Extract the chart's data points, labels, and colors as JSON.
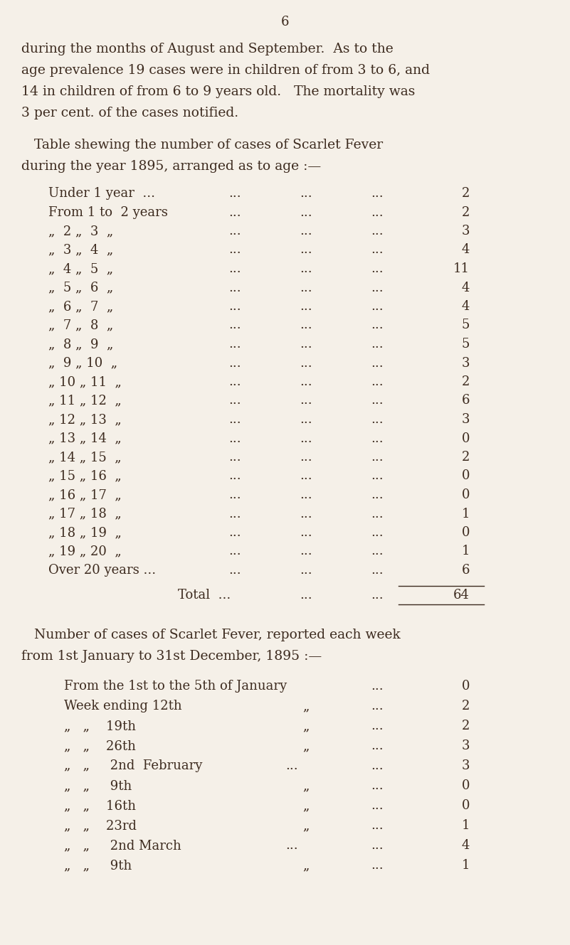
{
  "bg_color": "#f5f0e8",
  "text_color": "#3d2b1f",
  "page_number": "6",
  "intro_text": [
    "during the months of August and September.  As to the",
    "age prevalence 19 cases were in children of from 3 to 6, and",
    "14 in children of from 6 to 9 years old.   The mortality was",
    "3 per cent. of the cases notified."
  ],
  "table_heading": [
    "   Table shewing the number of cases of Scarlet Fever",
    "during the year 1895, arranged as to age :—"
  ],
  "age_rows": [
    {
      "label": "Under 1 year  ...",
      "dots": "...",
      "dots2": "...",
      "dots3": "...",
      "value": "2"
    },
    {
      "label": "From 1 to  2 years",
      "dots": "...",
      "dots2": "...",
      "dots3": "...",
      "value": "2"
    },
    {
      "label": "„  2 „  3  „",
      "dots": "...",
      "dots2": "...",
      "dots3": "...",
      "value": "3"
    },
    {
      "label": "„  3 „  4  „",
      "dots": "...",
      "dots2": "...",
      "dots3": "...",
      "value": "4"
    },
    {
      "label": "„  4 „  5  „",
      "dots": "...",
      "dots2": "...",
      "dots3": "...",
      "value": "11"
    },
    {
      "label": "„  5 „  6  „",
      "dots": "...",
      "dots2": "...",
      "dots3": "...",
      "value": "4"
    },
    {
      "label": "„  6 „  7  „",
      "dots": "...",
      "dots2": "...",
      "dots3": "...",
      "value": "4"
    },
    {
      "label": "„  7 „  8  „",
      "dots": "...",
      "dots2": "...",
      "dots3": "...",
      "value": "5"
    },
    {
      "label": "„  8 „  9  „",
      "dots": "...",
      "dots2": "...",
      "dots3": "...",
      "value": "5"
    },
    {
      "label": "„  9 „ 10  „",
      "dots": "...",
      "dots2": "...",
      "dots3": "...",
      "value": "3"
    },
    {
      "label": "„ 10 „ 11  „",
      "dots": "...",
      "dots2": "...",
      "dots3": "...",
      "value": "2"
    },
    {
      "label": "„ 11 „ 12  „",
      "dots": "...",
      "dots2": "...",
      "dots3": "...",
      "value": "6"
    },
    {
      "label": "„ 12 „ 13  „",
      "dots": "...",
      "dots2": "...",
      "dots3": "...",
      "value": "3"
    },
    {
      "label": "„ 13 „ 14  „",
      "dots": "...",
      "dots2": "...",
      "dots3": "...",
      "value": "0"
    },
    {
      "label": "„ 14 „ 15  „",
      "dots": "...",
      "dots2": "...",
      "dots3": "...",
      "value": "2"
    },
    {
      "label": "„ 15 „ 16  „",
      "dots": "...",
      "dots2": "...",
      "dots3": "...",
      "value": "0"
    },
    {
      "label": "„ 16 „ 17  „",
      "dots": "...",
      "dots2": "...",
      "dots3": "...",
      "value": "0"
    },
    {
      "label": "„ 17 „ 18  „",
      "dots": "...",
      "dots2": "...",
      "dots3": "...",
      "value": "1"
    },
    {
      "label": "„ 18 „ 19  „",
      "dots": "...",
      "dots2": "...",
      "dots3": "...",
      "value": "0"
    },
    {
      "label": "„ 19 „ 20  „",
      "dots": "...",
      "dots2": "...",
      "dots3": "...",
      "value": "1"
    },
    {
      "label": "Over 20 years ...",
      "dots": "...",
      "dots2": "...",
      "dots3": "...",
      "value": "6"
    }
  ],
  "total_label": "Total  ...",
  "total_dots": "...",
  "total_dots2": "...",
  "total_value": "64",
  "section2_heading": [
    "   Number of cases of Scarlet Fever, reported each week",
    "from 1st January to 31st December, 1895 :—"
  ],
  "week_rows": [
    {
      "label": "From the 1st to the 5th of January",
      "mid": "",
      "dots": "...",
      "value": "0"
    },
    {
      "label": "Week ending 12th",
      "mid": "„",
      "dots": "...",
      "value": "2"
    },
    {
      "label": "„   „    19th",
      "mid": "„",
      "dots": "...",
      "value": "2"
    },
    {
      "label": "„   „    26th",
      "mid": "„",
      "dots": "...",
      "value": "3"
    },
    {
      "label": "„   „     2nd February",
      "mid": "...",
      "dots": "...",
      "value": "3"
    },
    {
      "label": "„   „     9th",
      "mid": "„",
      "dots": "...",
      "value": "0"
    },
    {
      "label": "„   „    16th",
      "mid": "„",
      "dots": "...",
      "value": "0"
    },
    {
      "label": "„   „    23rd",
      "mid": "„",
      "dots": "...",
      "value": "1"
    },
    {
      "label": "„   „     2nd March",
      "mid": "...",
      "dots": "...",
      "value": "4"
    },
    {
      "label": "„   „     9th",
      "mid": "„",
      "dots": "...",
      "value": "1"
    }
  ]
}
